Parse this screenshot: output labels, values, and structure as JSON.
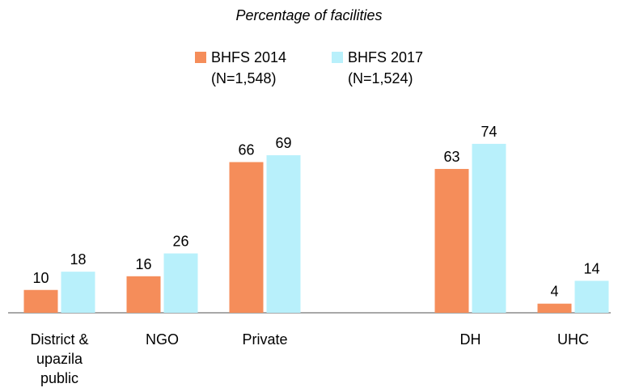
{
  "chart_data": {
    "type": "bar",
    "title": "Percentage of facilities",
    "categories": [
      "District & upazila public",
      "NGO",
      "Private",
      null,
      "DH",
      "UHC"
    ],
    "series": [
      {
        "name": "BHFS 2014 (N=1,548)",
        "color": "#f58d5a",
        "values": [
          10,
          16,
          66,
          null,
          63,
          4
        ]
      },
      {
        "name": "BHFS 2017 (N=1,524)",
        "color": "#b8f0fb",
        "values": [
          18,
          26,
          69,
          null,
          74,
          14
        ]
      }
    ],
    "ylim": [
      0,
      80
    ]
  }
}
